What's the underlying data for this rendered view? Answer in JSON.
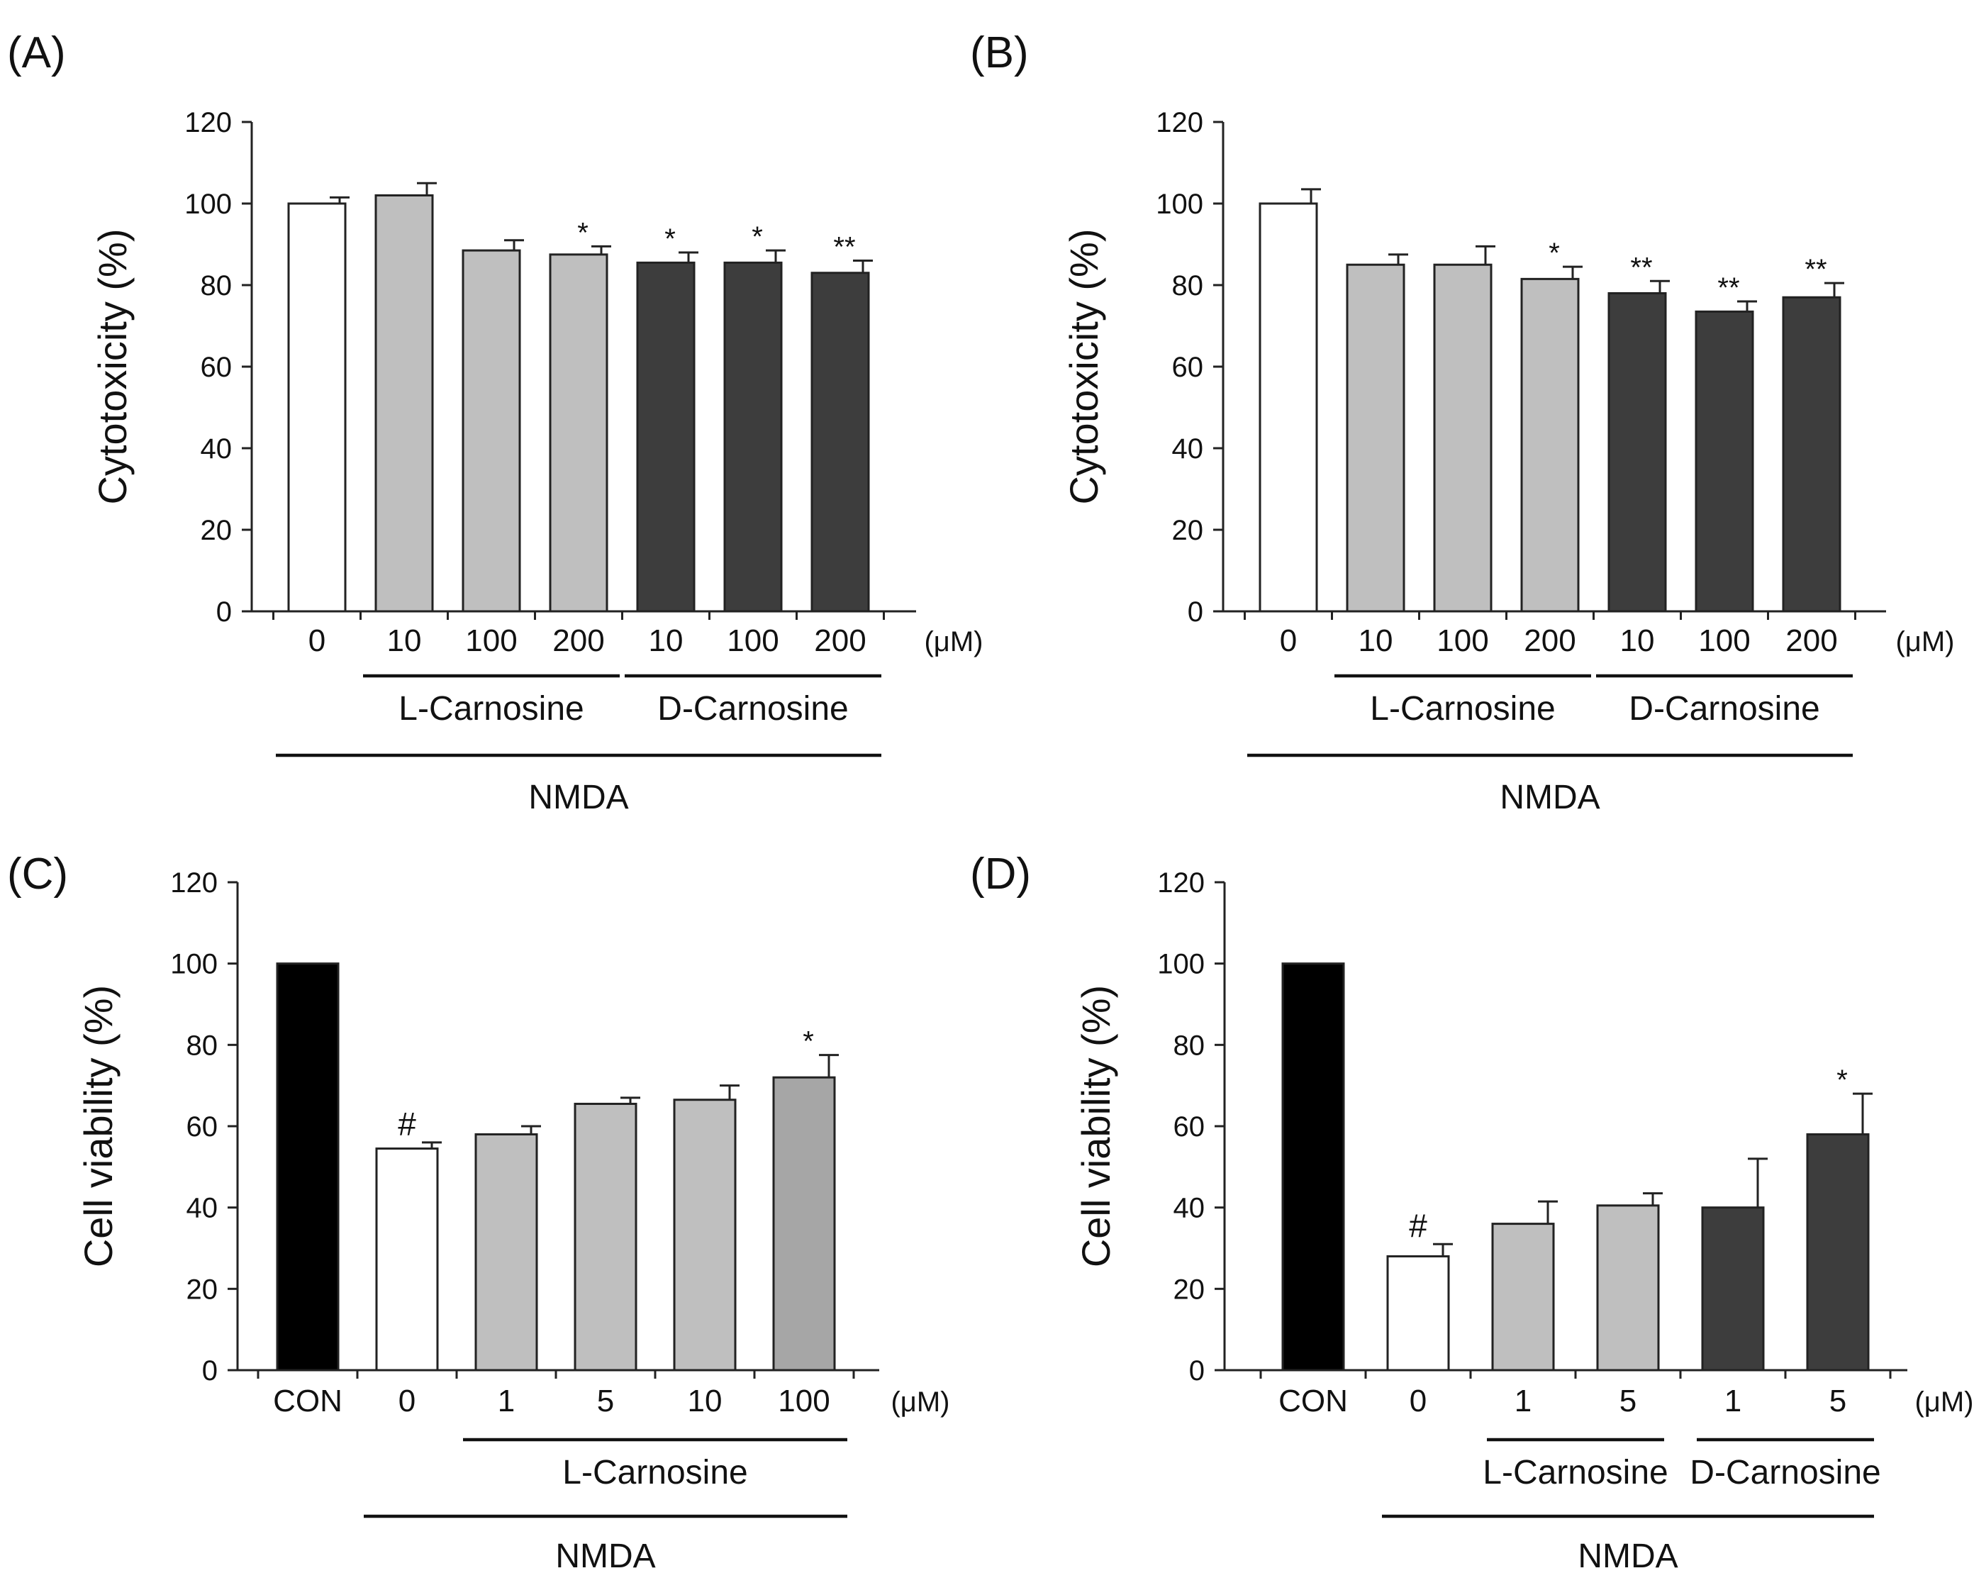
{
  "colors": {
    "white": "#ffffff",
    "light_gray": "#bfbfbf",
    "mid_gray": "#a6a6a6",
    "dark_gray": "#3d3d3d",
    "black": "#000000"
  },
  "chart_data": [
    {
      "panel_label": "(A)",
      "type": "bar",
      "ylabel": "Cytotoxicity (%)",
      "ylim": [
        0,
        120
      ],
      "yticks": [
        "0",
        "20",
        "40",
        "60",
        "80",
        "100",
        "120"
      ],
      "unit_label": "(μM)",
      "categories": [
        "0",
        "10",
        "100",
        "200",
        "10",
        "100",
        "200"
      ],
      "values": [
        100,
        102,
        88.5,
        87.5,
        85.5,
        85.5,
        83
      ],
      "errors": [
        1.5,
        3,
        2.5,
        2,
        2.5,
        3,
        3
      ],
      "annotations": [
        "",
        "",
        "",
        "*",
        "*",
        "*",
        "**"
      ],
      "fills": [
        "white",
        "light_gray",
        "light_gray",
        "light_gray",
        "dark_gray",
        "dark_gray",
        "dark_gray"
      ],
      "groups": [
        {
          "label": "L-Carnosine",
          "from": 1,
          "to": 3,
          "level": 1
        },
        {
          "label": "D-Carnosine",
          "from": 4,
          "to": 6,
          "level": 1
        },
        {
          "label": "NMDA",
          "from": 0,
          "to": 6,
          "level": 2
        }
      ]
    },
    {
      "panel_label": "(B)",
      "type": "bar",
      "ylabel": "Cytotoxicity (%)",
      "ylim": [
        0,
        120
      ],
      "yticks": [
        "0",
        "20",
        "40",
        "60",
        "80",
        "100",
        "120"
      ],
      "unit_label": "(μM)",
      "categories": [
        "0",
        "10",
        "100",
        "200",
        "10",
        "100",
        "200"
      ],
      "values": [
        100,
        85,
        85,
        81.5,
        78,
        73.5,
        77
      ],
      "errors": [
        3.5,
        2.5,
        4.5,
        3,
        3,
        2.5,
        3.5
      ],
      "annotations": [
        "",
        "",
        "",
        "*",
        "**",
        "**",
        "**"
      ],
      "fills": [
        "white",
        "light_gray",
        "light_gray",
        "light_gray",
        "dark_gray",
        "dark_gray",
        "dark_gray"
      ],
      "groups": [
        {
          "label": "L-Carnosine",
          "from": 1,
          "to": 3,
          "level": 1
        },
        {
          "label": "D-Carnosine",
          "from": 4,
          "to": 6,
          "level": 1
        },
        {
          "label": "NMDA",
          "from": 0,
          "to": 6,
          "level": 2
        }
      ]
    },
    {
      "panel_label": "(C)",
      "type": "bar",
      "ylabel": "Cell viability (%)",
      "ylim": [
        0,
        120
      ],
      "yticks": [
        "0",
        "20",
        "40",
        "60",
        "80",
        "100",
        "120"
      ],
      "unit_label": "(μM)",
      "categories": [
        "CON",
        "0",
        "1",
        "5",
        "10",
        "100"
      ],
      "values": [
        100,
        54.5,
        58,
        65.5,
        66.5,
        72
      ],
      "errors": [
        0,
        1.5,
        2,
        1.5,
        3.5,
        5.5
      ],
      "annotations": [
        "",
        "#",
        "",
        "",
        "",
        "*"
      ],
      "fills": [
        "black",
        "white",
        "light_gray",
        "light_gray",
        "light_gray",
        "mid_gray"
      ],
      "groups": [
        {
          "label": "L-Carnosine",
          "from": 2,
          "to": 5,
          "level": 1
        },
        {
          "label": "NMDA",
          "from": 1,
          "to": 5,
          "level": 2
        }
      ]
    },
    {
      "panel_label": "(D)",
      "type": "bar",
      "ylabel": "Cell viability (%)",
      "ylim": [
        0,
        120
      ],
      "yticks": [
        "0",
        "20",
        "40",
        "60",
        "80",
        "100",
        "120"
      ],
      "unit_label": "(μM)",
      "categories": [
        "CON",
        "0",
        "1",
        "5",
        "1",
        "5"
      ],
      "values": [
        100,
        28,
        36,
        40.5,
        40,
        58
      ],
      "errors": [
        0,
        3,
        5.5,
        3,
        12,
        10
      ],
      "annotations": [
        "",
        "#",
        "",
        "",
        "",
        "*"
      ],
      "fills": [
        "black",
        "white",
        "light_gray",
        "light_gray",
        "dark_gray",
        "dark_gray"
      ],
      "groups": [
        {
          "label": "L-Carnosine",
          "from": 2,
          "to": 3,
          "level": 1
        },
        {
          "label": "D-Carnosine",
          "from": 4,
          "to": 5,
          "level": 1
        },
        {
          "label": "NMDA",
          "from": 1,
          "to": 5,
          "level": 2
        }
      ]
    }
  ]
}
